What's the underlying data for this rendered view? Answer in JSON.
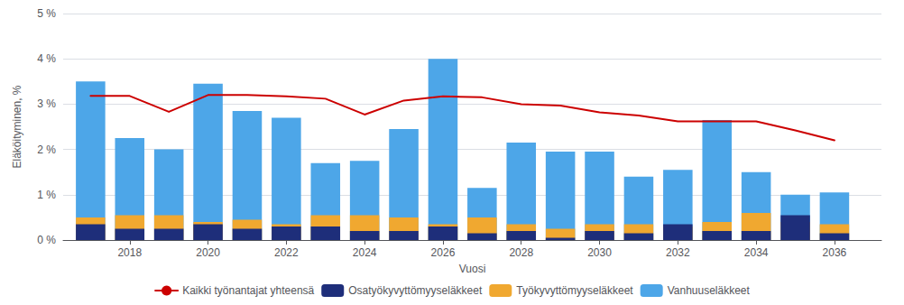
{
  "chart_data": {
    "type": "bar",
    "xlabel": "Vuosi",
    "ylabel": "Eläköityminen, %",
    "x": [
      2017,
      2018,
      2019,
      2020,
      2021,
      2022,
      2023,
      2024,
      2025,
      2026,
      2027,
      2028,
      2029,
      2030,
      2031,
      2032,
      2033,
      2034,
      2035,
      2036
    ],
    "series": [
      {
        "name": "Vanhuuseläkkeet",
        "type": "bar",
        "color": "#4da6e8",
        "values": [
          3.5,
          2.25,
          2.0,
          3.45,
          2.85,
          2.7,
          1.7,
          1.75,
          2.45,
          4.0,
          1.15,
          2.15,
          1.95,
          1.95,
          1.4,
          1.55,
          2.65,
          1.5,
          1.0,
          1.05
        ]
      },
      {
        "name": "Työkyvyttömyyseläkkeet",
        "type": "bar",
        "color": "#f0a830",
        "values": [
          0.5,
          0.55,
          0.55,
          0.4,
          0.45,
          0.35,
          0.55,
          0.55,
          0.5,
          0.35,
          0.5,
          0.35,
          0.25,
          0.35,
          0.35,
          0.3,
          0.4,
          0.6,
          0.4,
          0.35
        ]
      },
      {
        "name": "Osatyökyvyttömyyseläkkeet",
        "type": "bar",
        "color": "#1e2e7a",
        "values": [
          0.35,
          0.25,
          0.25,
          0.35,
          0.25,
          0.3,
          0.3,
          0.2,
          0.2,
          0.3,
          0.15,
          0.2,
          0.05,
          0.2,
          0.15,
          0.35,
          0.2,
          0.2,
          0.55,
          0.15
        ]
      },
      {
        "name": "Kaikki työnantajat yhteensä",
        "type": "line",
        "color": "#cc0000",
        "values": [
          3.18,
          3.18,
          2.83,
          3.2,
          3.2,
          3.17,
          3.12,
          2.77,
          3.08,
          3.17,
          3.15,
          3.0,
          2.97,
          2.82,
          2.75,
          2.62,
          2.62,
          2.62,
          2.42,
          2.2
        ]
      }
    ],
    "stacked": true,
    "xlim": [
      2016.3,
      2037.2
    ],
    "xticks": [
      2018,
      2020,
      2022,
      2024,
      2026,
      2028,
      2030,
      2032,
      2034,
      2036
    ],
    "ylim": [
      0,
      5
    ],
    "yticks": [
      {
        "value": 0,
        "label": "0 %"
      },
      {
        "value": 1,
        "label": "1 %"
      },
      {
        "value": 2,
        "label": "2 %"
      },
      {
        "value": 3,
        "label": "3 %"
      },
      {
        "value": 4,
        "label": "4 %"
      },
      {
        "value": 5,
        "label": "5 %"
      }
    ],
    "grid": true,
    "legend": "bottom"
  }
}
